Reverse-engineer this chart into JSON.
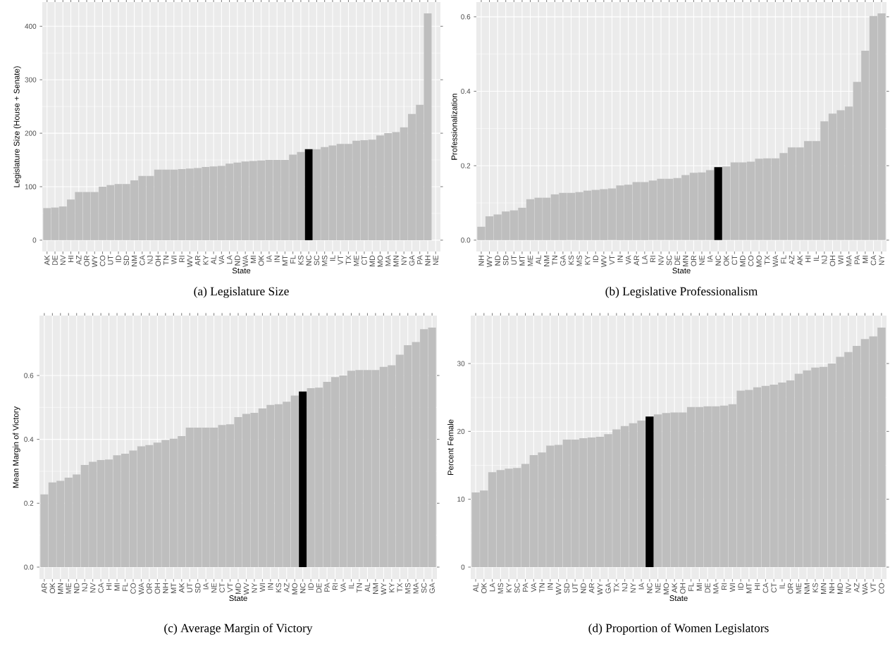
{
  "chart_data": [
    {
      "type": "bar",
      "title": "(a) Legislature Size",
      "xlabel": "State",
      "ylabel": "Legislature Size (House + Senate)",
      "grid": true,
      "ylim": [
        -21.2,
        445.2
      ],
      "yticks": [
        0,
        100,
        200,
        300,
        400
      ],
      "categories": [
        "AK",
        "DE",
        "NV",
        "HI",
        "AZ",
        "OR",
        "WY",
        "CO",
        "UT",
        "ID",
        "SD",
        "NM",
        "CA",
        "NJ",
        "OH",
        "TN",
        "WI",
        "RI",
        "WV",
        "AR",
        "KY",
        "AL",
        "VA",
        "LA",
        "ND",
        "WA",
        "MI",
        "OK",
        "IA",
        "IN",
        "MT",
        "FL",
        "KS",
        "NC",
        "SC",
        "MS",
        "IL",
        "VT",
        "TX",
        "ME",
        "CT",
        "MD",
        "MO",
        "MA",
        "MN",
        "NY",
        "GA",
        "PA",
        "NH",
        "NE"
      ],
      "values": [
        60,
        61,
        63,
        76,
        90,
        90,
        90,
        100,
        103,
        105,
        105,
        112,
        120,
        120,
        132,
        132,
        132,
        133,
        134,
        135,
        137,
        138,
        139,
        143,
        145,
        147,
        148,
        149,
        150,
        150,
        150,
        160,
        165,
        170,
        170,
        174,
        177,
        180,
        180,
        186,
        187,
        188,
        196,
        200,
        202,
        211,
        236,
        253,
        424,
        null
      ],
      "colors": [
        "#bebebe",
        "#bebebe",
        "#bebebe",
        "#bebebe",
        "#bebebe",
        "#bebebe",
        "#bebebe",
        "#bebebe",
        "#bebebe",
        "#bebebe",
        "#bebebe",
        "#bebebe",
        "#bebebe",
        "#bebebe",
        "#bebebe",
        "#bebebe",
        "#bebebe",
        "#bebebe",
        "#bebebe",
        "#bebebe",
        "#bebebe",
        "#bebebe",
        "#bebebe",
        "#bebebe",
        "#bebebe",
        "#bebebe",
        "#bebebe",
        "#bebebe",
        "#bebebe",
        "#bebebe",
        "#bebebe",
        "#bebebe",
        "#bebebe",
        "#000000",
        "#bebebe",
        "#bebebe",
        "#bebebe",
        "#bebebe",
        "#bebebe",
        "#bebebe",
        "#bebebe",
        "#bebebe",
        "#bebebe",
        "#bebebe",
        "#bebebe",
        "#bebebe",
        "#bebebe",
        "#bebebe",
        "#bebebe",
        "#bebebe"
      ]
    },
    {
      "type": "bar",
      "title": "(b) Legislative Professionalism",
      "xlabel": "State",
      "ylabel": "Professionalization",
      "grid": true,
      "ylim": [
        -0.0305,
        0.6395
      ],
      "yticks": [
        {
          "value": 0,
          "label": "0.0"
        },
        {
          "value": 0.2,
          "label": "0.2"
        },
        {
          "value": 0.4,
          "label": "0.4"
        },
        {
          "value": 0.6,
          "label": "0.6"
        }
      ],
      "categories": [
        "NH",
        "WY",
        "ND",
        "SD",
        "UT",
        "MT",
        "ME",
        "AL",
        "NM",
        "TN",
        "GA",
        "KS",
        "MS",
        "KY",
        "ID",
        "WV",
        "VT",
        "IN",
        "VA",
        "AR",
        "LA",
        "RI",
        "NV",
        "SC",
        "DE",
        "MN",
        "OR",
        "NE",
        "IA",
        "NC",
        "OK",
        "CT",
        "MD",
        "CO",
        "MO",
        "TX",
        "WA",
        "FL",
        "AZ",
        "AK",
        "HI",
        "IL",
        "NJ",
        "OH",
        "WI",
        "MA",
        "PA",
        "MI",
        "CA",
        "NY"
      ],
      "values": [
        0.036,
        0.064,
        0.069,
        0.077,
        0.08,
        0.087,
        0.11,
        0.114,
        0.114,
        0.123,
        0.127,
        0.127,
        0.129,
        0.133,
        0.135,
        0.137,
        0.139,
        0.147,
        0.149,
        0.156,
        0.156,
        0.16,
        0.165,
        0.165,
        0.167,
        0.175,
        0.181,
        0.182,
        0.188,
        0.196,
        0.198,
        0.209,
        0.209,
        0.211,
        0.219,
        0.22,
        0.22,
        0.234,
        0.249,
        0.249,
        0.266,
        0.266,
        0.319,
        0.34,
        0.349,
        0.359,
        0.425,
        0.509,
        0.602,
        0.609
      ],
      "colors": [
        "#bebebe",
        "#bebebe",
        "#bebebe",
        "#bebebe",
        "#bebebe",
        "#bebebe",
        "#bebebe",
        "#bebebe",
        "#bebebe",
        "#bebebe",
        "#bebebe",
        "#bebebe",
        "#bebebe",
        "#bebebe",
        "#bebebe",
        "#bebebe",
        "#bebebe",
        "#bebebe",
        "#bebebe",
        "#bebebe",
        "#bebebe",
        "#bebebe",
        "#bebebe",
        "#bebebe",
        "#bebebe",
        "#bebebe",
        "#bebebe",
        "#bebebe",
        "#bebebe",
        "#000000",
        "#bebebe",
        "#bebebe",
        "#bebebe",
        "#bebebe",
        "#bebebe",
        "#bebebe",
        "#bebebe",
        "#bebebe",
        "#bebebe",
        "#bebebe",
        "#bebebe",
        "#bebebe",
        "#bebebe",
        "#bebebe",
        "#bebebe",
        "#bebebe",
        "#bebebe",
        "#bebebe",
        "#bebebe",
        "#bebebe"
      ]
    },
    {
      "type": "bar",
      "title": "(c) Average Margin of Victory",
      "xlabel": "State",
      "ylabel": "Mean Margin of Victory",
      "grid": true,
      "ylim": [
        -0.0375,
        0.7875
      ],
      "yticks": [
        {
          "value": 0,
          "label": "0.0"
        },
        {
          "value": 0.2,
          "label": "0.2"
        },
        {
          "value": 0.4,
          "label": "0.4"
        },
        {
          "value": 0.6,
          "label": "0.6"
        }
      ],
      "categories": [
        "AR",
        "OK",
        "MN",
        "ME",
        "ND",
        "NJ",
        "NV",
        "CA",
        "HI",
        "MI",
        "FL",
        "CO",
        "WA",
        "OR",
        "OH",
        "NH",
        "MT",
        "AK",
        "UT",
        "SD",
        "IA",
        "NE",
        "CT",
        "VT",
        "MD",
        "WV",
        "NY",
        "WI",
        "IN",
        "KS",
        "AZ",
        "MO",
        "NC",
        "ID",
        "DE",
        "PA",
        "RI",
        "VA",
        "IL",
        "TN",
        "AL",
        "NM",
        "WY",
        "KY",
        "TX",
        "MS",
        "MA",
        "SC",
        "GA"
      ],
      "values": [
        0.228,
        0.265,
        0.27,
        0.28,
        0.29,
        0.32,
        0.33,
        0.335,
        0.337,
        0.35,
        0.355,
        0.365,
        0.378,
        0.382,
        0.39,
        0.398,
        0.402,
        0.41,
        0.437,
        0.437,
        0.437,
        0.437,
        0.445,
        0.447,
        0.47,
        0.48,
        0.483,
        0.497,
        0.508,
        0.51,
        0.518,
        0.537,
        0.55,
        0.56,
        0.562,
        0.58,
        0.595,
        0.6,
        0.615,
        0.617,
        0.617,
        0.617,
        0.627,
        0.632,
        0.665,
        0.695,
        0.705,
        0.745,
        0.75
      ],
      "colors": [
        "#bebebe",
        "#bebebe",
        "#bebebe",
        "#bebebe",
        "#bebebe",
        "#bebebe",
        "#bebebe",
        "#bebebe",
        "#bebebe",
        "#bebebe",
        "#bebebe",
        "#bebebe",
        "#bebebe",
        "#bebebe",
        "#bebebe",
        "#bebebe",
        "#bebebe",
        "#bebebe",
        "#bebebe",
        "#bebebe",
        "#bebebe",
        "#bebebe",
        "#bebebe",
        "#bebebe",
        "#bebebe",
        "#bebebe",
        "#bebebe",
        "#bebebe",
        "#bebebe",
        "#bebebe",
        "#bebebe",
        "#bebebe",
        "#000000",
        "#bebebe",
        "#bebebe",
        "#bebebe",
        "#bebebe",
        "#bebebe",
        "#bebebe",
        "#bebebe",
        "#bebebe",
        "#bebebe",
        "#bebebe",
        "#bebebe",
        "#bebebe",
        "#bebebe",
        "#bebebe",
        "#bebebe",
        "#bebebe"
      ]
    },
    {
      "type": "bar",
      "title": "(d) Proportion of Women Legislators",
      "xlabel": "State",
      "ylabel": "Percent Female",
      "grid": true,
      "ylim": [
        -1.765,
        37.065
      ],
      "yticks": [
        0,
        10,
        20,
        30
      ],
      "categories": [
        "AL",
        "OK",
        "LA",
        "MS",
        "KY",
        "SC",
        "PA",
        "VA",
        "TN",
        "IN",
        "WV",
        "SD",
        "UT",
        "ND",
        "AR",
        "WY",
        "GA",
        "TX",
        "NJ",
        "NY",
        "IA",
        "NC",
        "NE",
        "MO",
        "AK",
        "OH",
        "FL",
        "MI",
        "DE",
        "MA",
        "RI",
        "WI",
        "ID",
        "MT",
        "HI",
        "CA",
        "CT",
        "IL",
        "OR",
        "ME",
        "NM",
        "KS",
        "MN",
        "NH",
        "MD",
        "NV",
        "AZ",
        "WA",
        "VT",
        "CO"
      ],
      "values": [
        11.0,
        11.3,
        14.0,
        14.3,
        14.5,
        14.6,
        15.2,
        16.5,
        16.9,
        17.9,
        18.0,
        18.8,
        18.8,
        19.0,
        19.1,
        19.2,
        19.6,
        20.3,
        20.8,
        21.2,
        21.6,
        22.2,
        22.5,
        22.7,
        22.8,
        22.8,
        23.6,
        23.6,
        23.7,
        23.7,
        23.8,
        24.0,
        26.0,
        26.1,
        26.5,
        26.7,
        26.9,
        27.2,
        27.5,
        28.5,
        29.0,
        29.4,
        29.5,
        30.0,
        31.0,
        31.7,
        32.6,
        33.6,
        34.0,
        35.3
      ],
      "colors": [
        "#bebebe",
        "#bebebe",
        "#bebebe",
        "#bebebe",
        "#bebebe",
        "#bebebe",
        "#bebebe",
        "#bebebe",
        "#bebebe",
        "#bebebe",
        "#bebebe",
        "#bebebe",
        "#bebebe",
        "#bebebe",
        "#bebebe",
        "#bebebe",
        "#bebebe",
        "#bebebe",
        "#bebebe",
        "#bebebe",
        "#bebebe",
        "#000000",
        "#bebebe",
        "#bebebe",
        "#bebebe",
        "#bebebe",
        "#bebebe",
        "#bebebe",
        "#bebebe",
        "#bebebe",
        "#bebebe",
        "#bebebe",
        "#bebebe",
        "#bebebe",
        "#bebebe",
        "#bebebe",
        "#bebebe",
        "#bebebe",
        "#bebebe",
        "#bebebe",
        "#bebebe",
        "#bebebe",
        "#bebebe",
        "#bebebe",
        "#bebebe",
        "#bebebe",
        "#bebebe",
        "#bebebe",
        "#bebebe",
        "#bebebe"
      ]
    }
  ]
}
